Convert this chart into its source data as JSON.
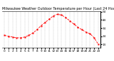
{
  "title": "Milwaukee Weather Outdoor Temperature per Hour (Last 24 Hours)",
  "hours": [
    0,
    1,
    2,
    3,
    4,
    5,
    6,
    7,
    8,
    9,
    10,
    11,
    12,
    13,
    14,
    15,
    16,
    17,
    18,
    19,
    20,
    21,
    22,
    23
  ],
  "temps": [
    25,
    24,
    23,
    22,
    22,
    23,
    25,
    28,
    32,
    37,
    41,
    45,
    49,
    51,
    50,
    47,
    43,
    39,
    35,
    32,
    29,
    27,
    22,
    14
  ],
  "line_color": "#ff0000",
  "marker": "s",
  "marker_size": 1.2,
  "line_style": "--",
  "line_width": 0.6,
  "bg_color": "#ffffff",
  "grid_color": "#888888",
  "ylim": [
    10,
    55
  ],
  "ytick_values": [
    14,
    24,
    34,
    44,
    54
  ],
  "title_fontsize": 3.5,
  "tick_fontsize": 3,
  "xlabel_fontsize": 3
}
